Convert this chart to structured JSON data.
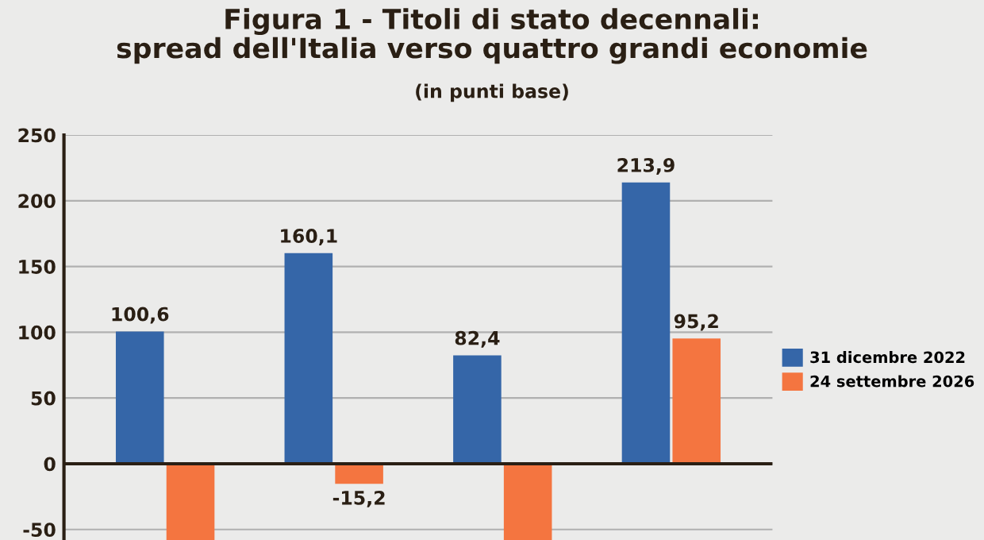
{
  "chart_data": {
    "type": "bar",
    "title": "Figura 1 - Titoli di stato decennali:\nspread dell'Italia verso quattro grandi economie",
    "subtitle": "(in punti base)",
    "categories": [
      null,
      null,
      null,
      null
    ],
    "series": [
      {
        "name": "31 dicembre 2022",
        "color": "#3566a8",
        "values": [
          100.6,
          160.1,
          82.4,
          213.9
        ],
        "value_labels": [
          "100,6",
          "160,1",
          "82,4",
          "213,9"
        ]
      },
      {
        "name": "24 settembre 2026",
        "color": "#f47540",
        "values": [
          -58,
          -15.2,
          -58,
          95.2
        ],
        "value_labels": [
          null,
          "-15,2",
          null,
          "95,2"
        ]
      }
    ],
    "ylim": [
      -58,
      250
    ],
    "yticks": [
      -50,
      0,
      50,
      100,
      150,
      200,
      250
    ],
    "grid": "y",
    "legend": "right"
  }
}
